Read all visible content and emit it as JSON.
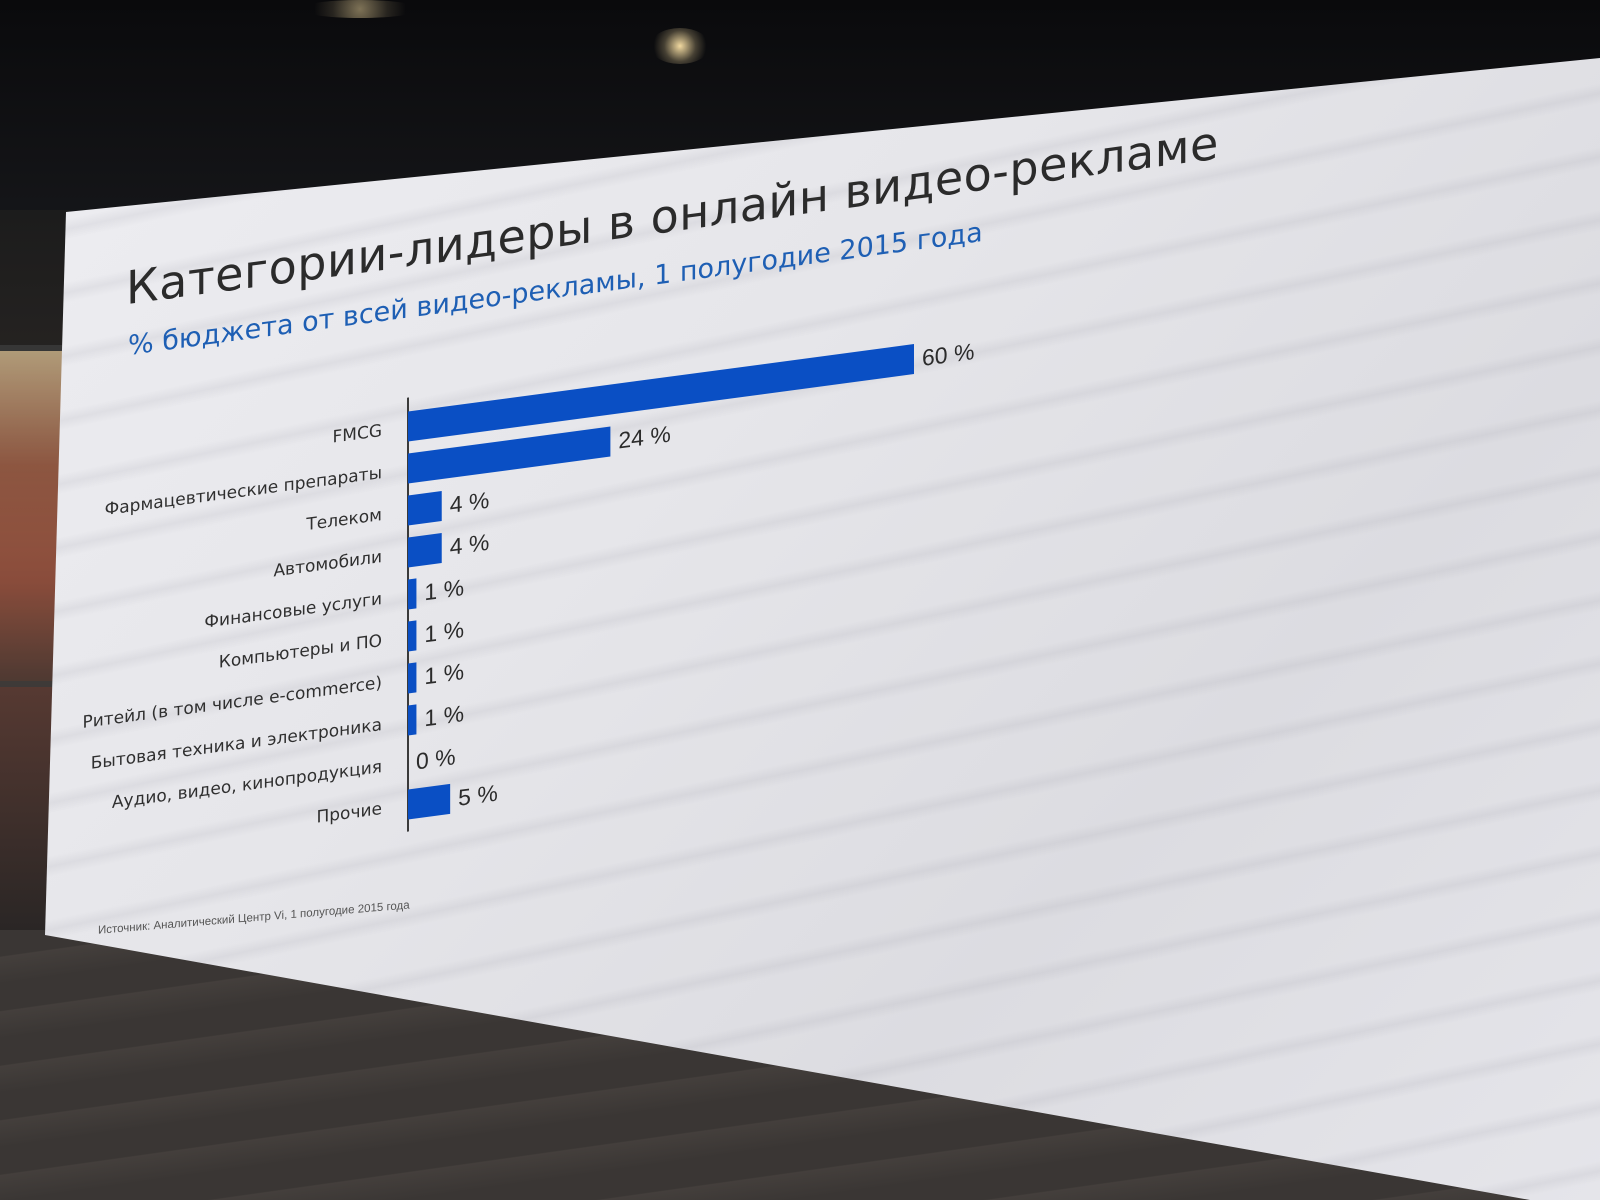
{
  "slide": {
    "title": "Категории-лидеры в онлайн видео-рекламе",
    "subtitle": "% бюджета от всей видео-рекламы, 1 полугодие 2015 года",
    "source": "Источник: Аналитический Центр Vi, 1 полугодие 2015 года"
  },
  "colors": {
    "bar": "#0a4fc4",
    "subtitle": "#1e5fb4",
    "title": "#2b2b2b"
  },
  "chart_data": {
    "type": "bar",
    "orientation": "horizontal",
    "title": "Категории-лидеры в онлайн видео-рекламе",
    "subtitle": "% бюджета от всей видео-рекламы, 1 полугодие 2015 года",
    "categories": [
      "FMCG",
      "Фармацевтические препараты",
      "Телеком",
      "Автомобили",
      "Финансовые услуги",
      "Компьютеры и ПО",
      "Ритейл (в том числе e-commerce)",
      "Бытовая техника и электроника",
      "Аудио, видео, кинопродукция",
      "Прочие"
    ],
    "values": [
      60,
      24,
      4,
      4,
      1,
      1,
      1,
      1,
      0,
      5
    ],
    "value_labels": [
      "60 %",
      "24 %",
      "4 %",
      "4 %",
      "1 %",
      "1 %",
      "1 %",
      "1 %",
      "0 %",
      "5 %"
    ],
    "unit": "%",
    "xlim": [
      0,
      60
    ],
    "grid": false,
    "legend": "none"
  }
}
